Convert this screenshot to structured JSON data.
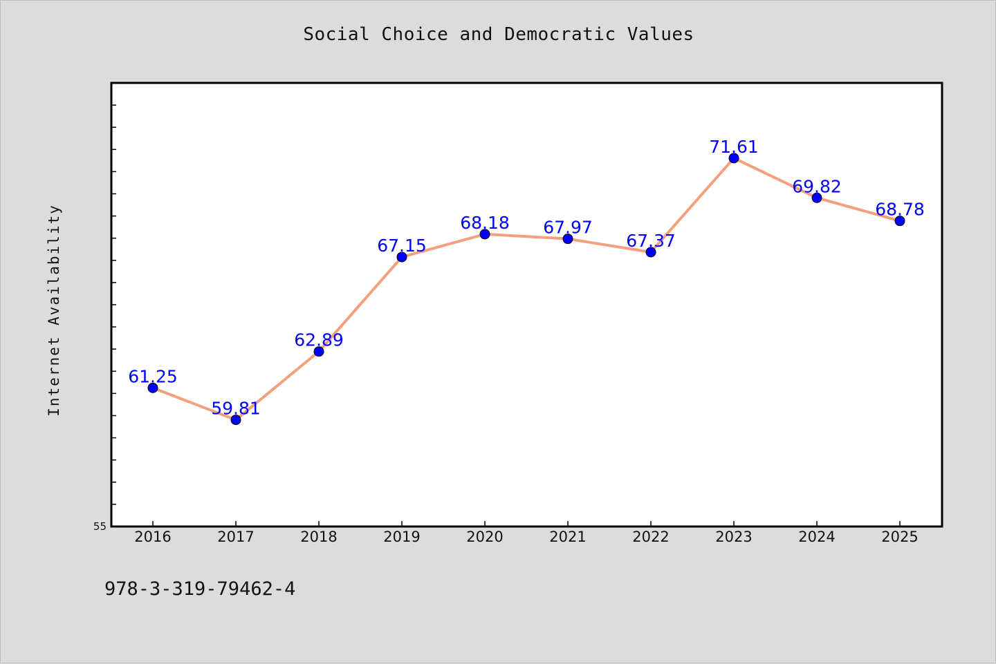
{
  "chart_data": {
    "type": "line",
    "title": "Social Choice and Democratic Values",
    "xlabel": "",
    "ylabel": "Internet Availability",
    "x": [
      "2016",
      "2017",
      "2018",
      "2019",
      "2020",
      "2021",
      "2022",
      "2023",
      "2024",
      "2025"
    ],
    "series": [
      {
        "values": [
          61.25,
          59.81,
          62.89,
          67.15,
          68.18,
          67.97,
          67.37,
          71.61,
          69.82,
          68.78
        ],
        "data_labels": [
          "61.25",
          "59.81",
          "62.89",
          "67.15",
          "68.18",
          "67.97",
          "67.37",
          "71.61",
          "69.82",
          "68.78"
        ]
      }
    ],
    "ylim": [
      55,
      75
    ],
    "y_tick_labels": [
      "55"
    ],
    "grid": false,
    "legend": "none",
    "colors": {
      "line": "#f4a07e",
      "marker": "#0000ff",
      "label": "#0000ff",
      "plot_background": "#ffffff",
      "figure_background": "#dcdcdc"
    }
  },
  "footer": {
    "code": "978-3-319-79462-4"
  }
}
